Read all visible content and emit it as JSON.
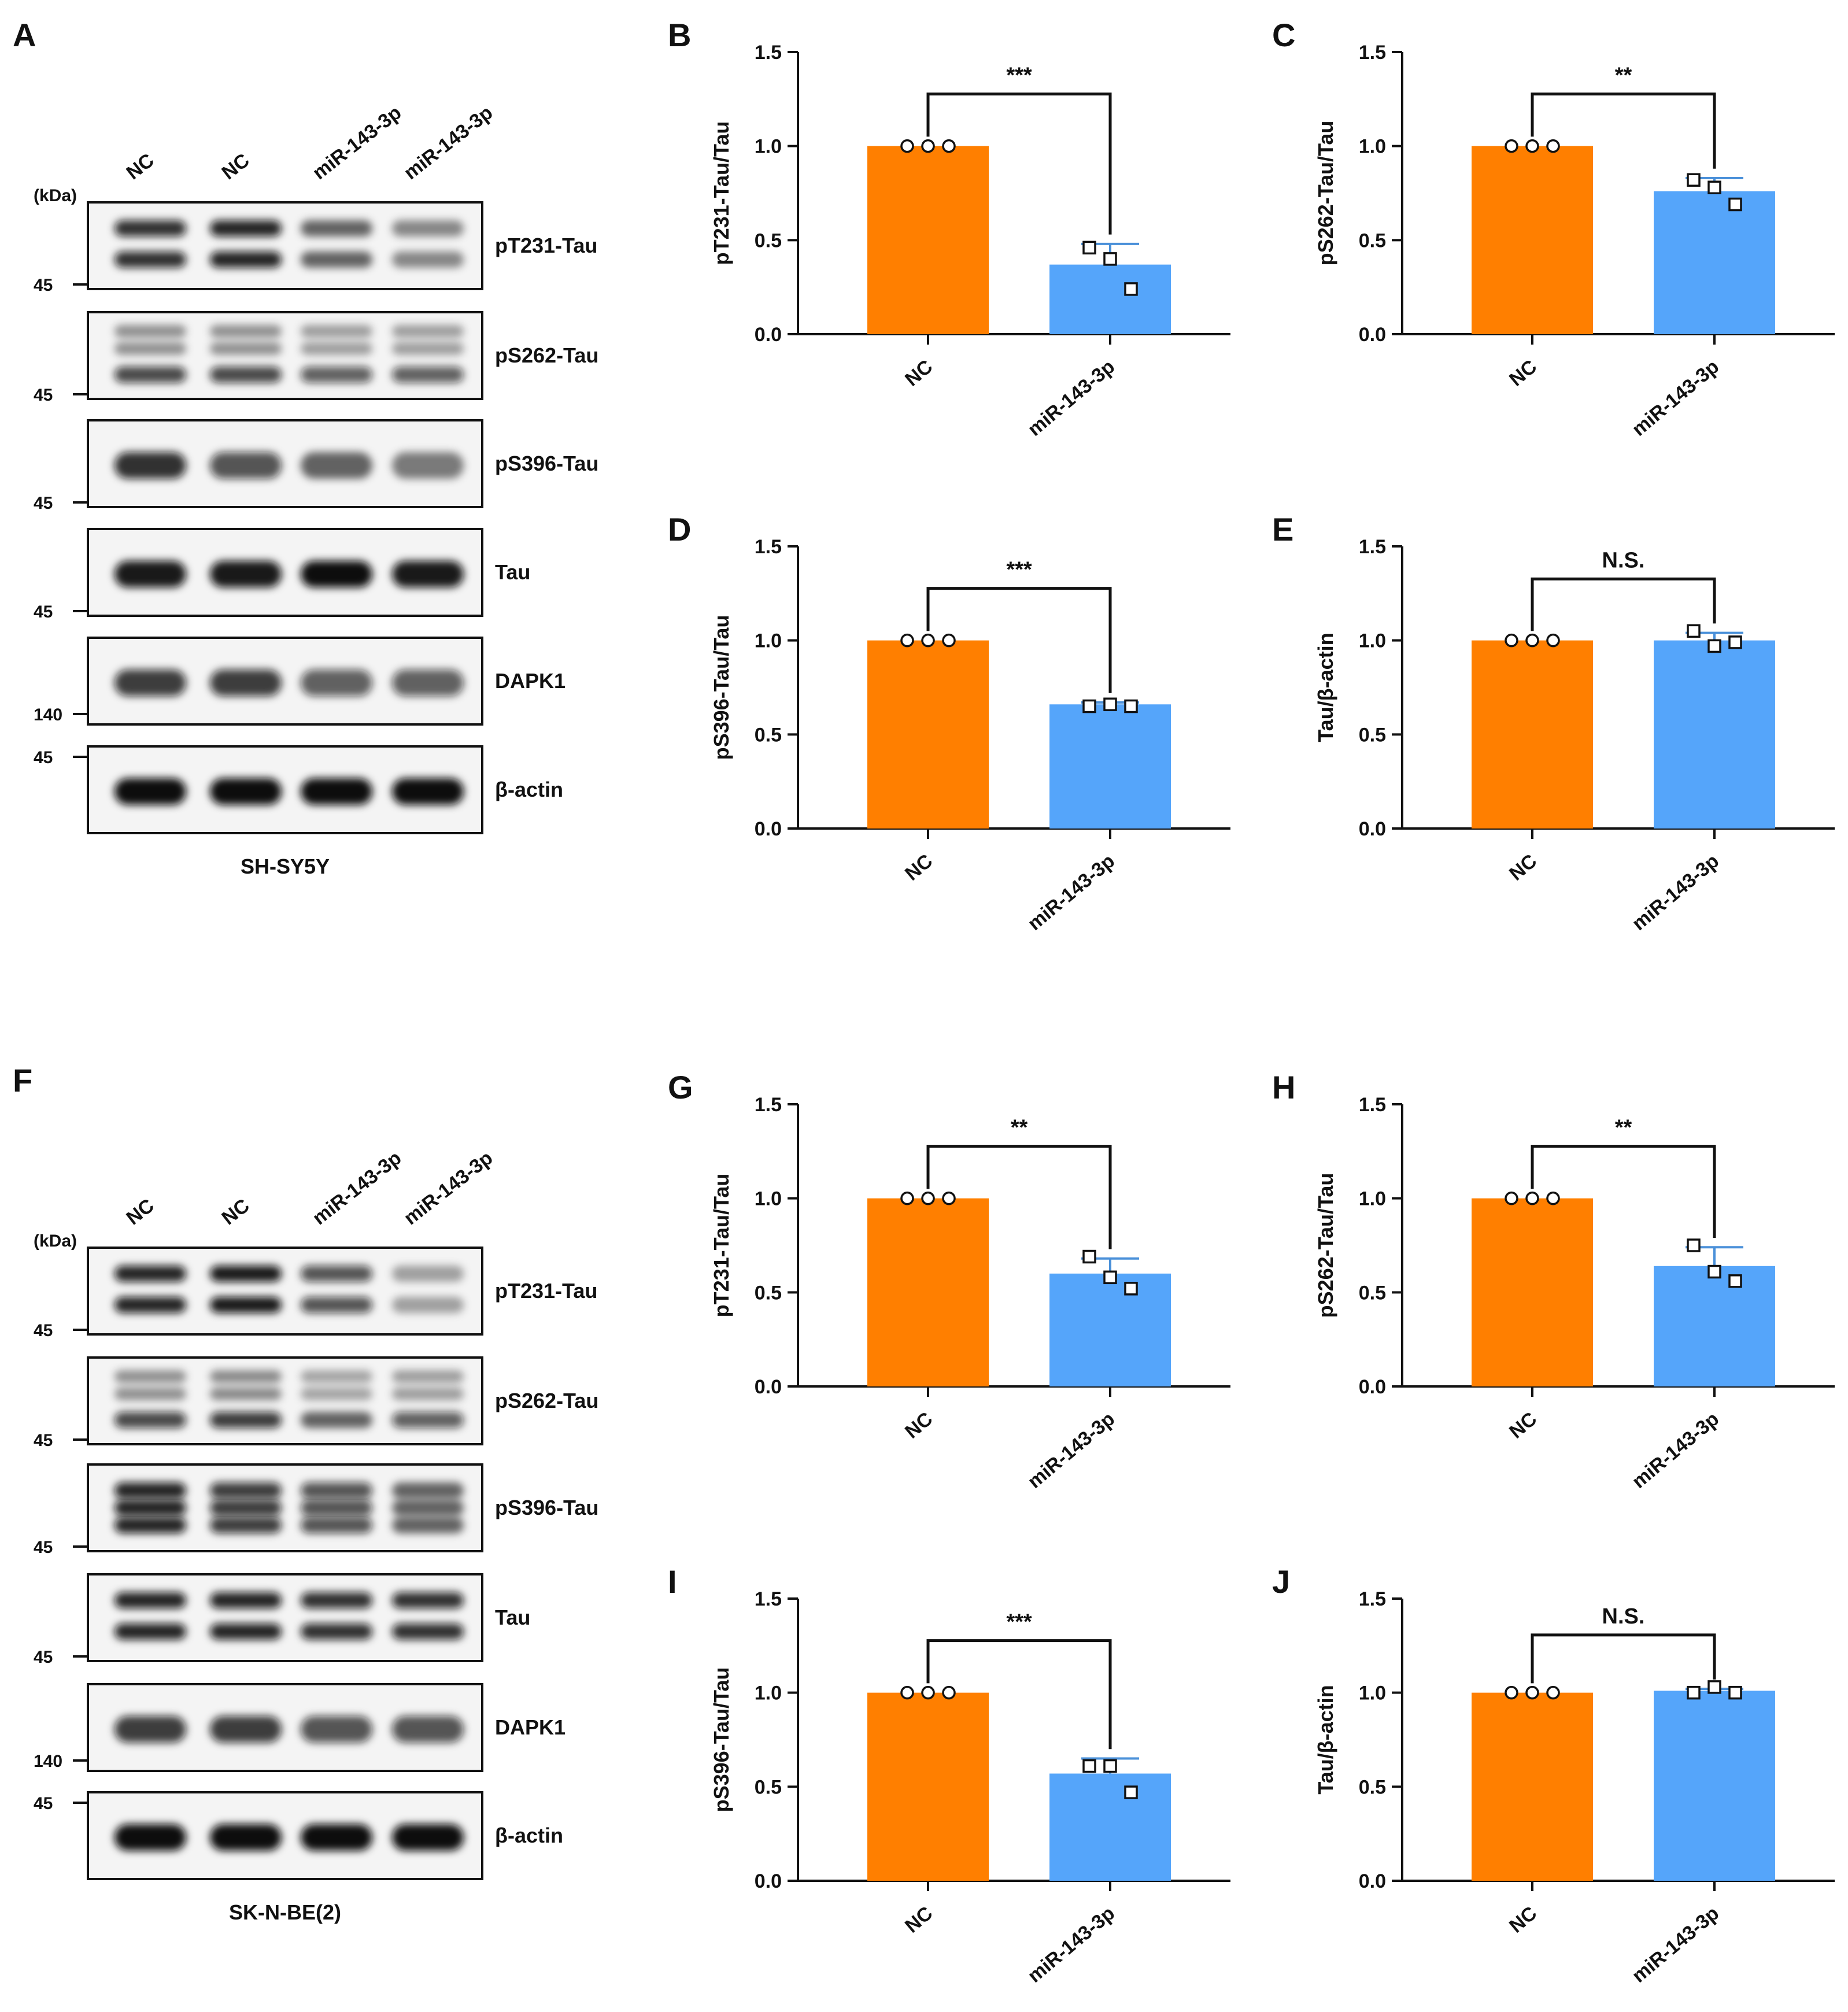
{
  "figure": {
    "units_label": "(kDa)",
    "blots": [
      {
        "panel": "A",
        "cell_line": "SH-SY5Y",
        "lanes": [
          "NC",
          "NC",
          "miR-143-3p",
          "miR-143-3p"
        ],
        "rows": [
          {
            "label": "pT231-Tau",
            "marker": "45",
            "bands": [
              0.85,
              0.9,
              0.6,
              0.45
            ],
            "pattern": "double"
          },
          {
            "label": "pS262-Tau",
            "marker": "45",
            "bands": [
              0.75,
              0.75,
              0.65,
              0.65
            ],
            "pattern": "smear"
          },
          {
            "label": "pS396-Tau",
            "marker": "45",
            "bands": [
              0.85,
              0.7,
              0.6,
              0.5
            ],
            "pattern": "single"
          },
          {
            "label": "Tau",
            "marker": "45",
            "bands": [
              0.95,
              0.95,
              1.0,
              0.95
            ],
            "pattern": "single"
          },
          {
            "label": "DAPK1",
            "marker": "140",
            "bands": [
              0.8,
              0.8,
              0.65,
              0.65
            ],
            "pattern": "single"
          },
          {
            "label": "β-actin",
            "marker": "45",
            "bands": [
              1.0,
              1.0,
              1.0,
              1.0
            ],
            "pattern": "single"
          }
        ]
      },
      {
        "panel": "F",
        "cell_line": "SK-N-BE(2)",
        "lanes": [
          "NC",
          "NC",
          "miR-143-3p",
          "miR-143-3p"
        ],
        "rows": [
          {
            "label": "pT231-Tau",
            "marker": "45",
            "bands": [
              0.9,
              0.95,
              0.7,
              0.35
            ],
            "pattern": "double"
          },
          {
            "label": "pS262-Tau",
            "marker": "45",
            "bands": [
              0.75,
              0.8,
              0.6,
              0.65
            ],
            "pattern": "smear"
          },
          {
            "label": "pS396-Tau",
            "marker": "45",
            "bands": [
              0.9,
              0.8,
              0.7,
              0.6
            ],
            "pattern": "triple"
          },
          {
            "label": "Tau",
            "marker": "45",
            "bands": [
              0.9,
              0.9,
              0.85,
              0.85
            ],
            "pattern": "double"
          },
          {
            "label": "DAPK1",
            "marker": "140",
            "bands": [
              0.8,
              0.8,
              0.7,
              0.7
            ],
            "pattern": "single"
          },
          {
            "label": "β-actin",
            "marker": "45",
            "bands": [
              1.0,
              1.0,
              1.0,
              1.0
            ],
            "pattern": "single"
          }
        ]
      }
    ]
  },
  "chart_data": [
    {
      "panel": "B",
      "type": "bar",
      "ylabel": "pT231-Tau/Tau",
      "categories": [
        "NC",
        "miR-143-3p"
      ],
      "values": [
        1.0,
        0.37
      ],
      "errors": [
        0,
        0.11
      ],
      "points": [
        [
          1.0,
          1.0,
          1.0
        ],
        [
          0.46,
          0.4,
          0.24
        ]
      ],
      "significance": "***",
      "ylim": [
        0,
        1.5
      ],
      "yticks": [
        "0.0",
        "0.5",
        "1.0",
        "1.5"
      ],
      "colors": [
        "#FF7F00",
        "#55A5FA"
      ]
    },
    {
      "panel": "C",
      "type": "bar",
      "ylabel": "pS262-Tau/Tau",
      "categories": [
        "NC",
        "miR-143-3p"
      ],
      "values": [
        1.0,
        0.76
      ],
      "errors": [
        0,
        0.07
      ],
      "points": [
        [
          1.0,
          1.0,
          1.0
        ],
        [
          0.82,
          0.78,
          0.69
        ]
      ],
      "significance": "**",
      "ylim": [
        0,
        1.5
      ],
      "yticks": [
        "0.0",
        "0.5",
        "1.0",
        "1.5"
      ],
      "colors": [
        "#FF7F00",
        "#55A5FA"
      ]
    },
    {
      "panel": "D",
      "type": "bar",
      "ylabel": "pS396-Tau/Tau",
      "categories": [
        "NC",
        "miR-143-3p"
      ],
      "values": [
        1.0,
        0.66
      ],
      "errors": [
        0,
        0.01
      ],
      "points": [
        [
          1.0,
          1.0,
          1.0
        ],
        [
          0.65,
          0.66,
          0.65
        ]
      ],
      "significance": "***",
      "ylim": [
        0,
        1.5
      ],
      "yticks": [
        "0.0",
        "0.5",
        "1.0",
        "1.5"
      ],
      "colors": [
        "#FF7F00",
        "#55A5FA"
      ]
    },
    {
      "panel": "E",
      "type": "bar",
      "ylabel": "Tau/β-actin",
      "categories": [
        "NC",
        "miR-143-3p"
      ],
      "values": [
        1.0,
        1.0
      ],
      "errors": [
        0,
        0.04
      ],
      "points": [
        [
          1.0,
          1.0,
          1.0
        ],
        [
          1.05,
          0.97,
          0.99
        ]
      ],
      "significance": "N.S.",
      "ylim": [
        0,
        1.5
      ],
      "yticks": [
        "0.0",
        "0.5",
        "1.0",
        "1.5"
      ],
      "colors": [
        "#FF7F00",
        "#55A5FA"
      ]
    },
    {
      "panel": "G",
      "type": "bar",
      "ylabel": "pT231-Tau/Tau",
      "categories": [
        "NC",
        "miR-143-3p"
      ],
      "values": [
        1.0,
        0.6
      ],
      "errors": [
        0,
        0.08
      ],
      "points": [
        [
          1.0,
          1.0,
          1.0
        ],
        [
          0.69,
          0.58,
          0.52
        ]
      ],
      "significance": "**",
      "ylim": [
        0,
        1.5
      ],
      "yticks": [
        "0.0",
        "0.5",
        "1.0",
        "1.5"
      ],
      "colors": [
        "#FF7F00",
        "#55A5FA"
      ]
    },
    {
      "panel": "H",
      "type": "bar",
      "ylabel": "pS262-Tau/Tau",
      "categories": [
        "NC",
        "miR-143-3p"
      ],
      "values": [
        1.0,
        0.64
      ],
      "errors": [
        0,
        0.1
      ],
      "points": [
        [
          1.0,
          1.0,
          1.0
        ],
        [
          0.75,
          0.61,
          0.56
        ]
      ],
      "significance": "**",
      "ylim": [
        0,
        1.5
      ],
      "yticks": [
        "0.0",
        "0.5",
        "1.0",
        "1.5"
      ],
      "colors": [
        "#FF7F00",
        "#55A5FA"
      ]
    },
    {
      "panel": "I",
      "type": "bar",
      "ylabel": "pS396-Tau/Tau",
      "categories": [
        "NC",
        "miR-143-3p"
      ],
      "values": [
        1.0,
        0.57
      ],
      "errors": [
        0,
        0.08
      ],
      "points": [
        [
          1.0,
          1.0,
          1.0
        ],
        [
          0.61,
          0.61,
          0.47
        ]
      ],
      "significance": "***",
      "ylim": [
        0,
        1.5
      ],
      "yticks": [
        "0.0",
        "0.5",
        "1.0",
        "1.5"
      ],
      "colors": [
        "#FF7F00",
        "#55A5FA"
      ]
    },
    {
      "panel": "J",
      "type": "bar",
      "ylabel": "Tau/β-actin",
      "categories": [
        "NC",
        "miR-143-3p"
      ],
      "values": [
        1.0,
        1.01
      ],
      "errors": [
        0,
        0.01
      ],
      "points": [
        [
          1.0,
          1.0,
          1.0
        ],
        [
          1.0,
          1.03,
          1.0
        ]
      ],
      "significance": "N.S.",
      "ylim": [
        0,
        1.5
      ],
      "yticks": [
        "0.0",
        "0.5",
        "1.0",
        "1.5"
      ],
      "colors": [
        "#FF7F00",
        "#55A5FA"
      ]
    }
  ]
}
